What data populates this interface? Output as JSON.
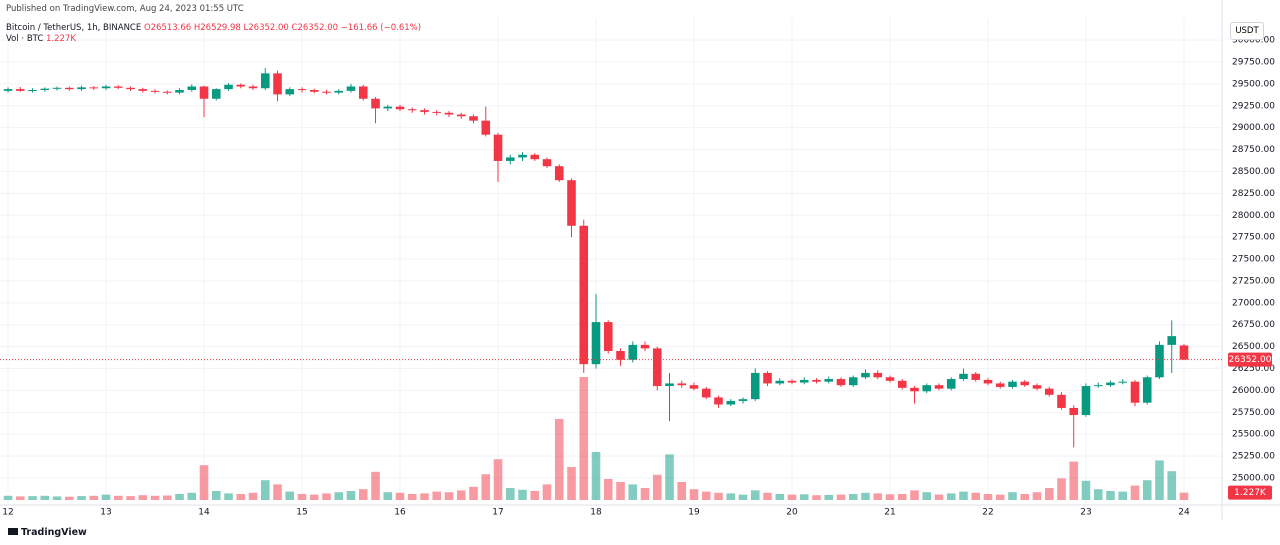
{
  "chart_data": {
    "type": "candlestick",
    "published": "Published on TradingView.com, Aug 24, 2023 01:55 UTC",
    "legend": {
      "symbol": "Bitcoin / TetherUS, 1h, BINANCE",
      "ohlc": "O26513.66 H26529.98 L26352.00 C26352.00 −161.66 (−0.61%)",
      "vol_title": "Vol · BTC",
      "vol_value": "1.227K"
    },
    "currency": "USDT",
    "footer": "TradingView",
    "up_color": "#089981",
    "down_color": "#f23645",
    "grid": true,
    "x": [
      12,
      12.125,
      12.25,
      12.375,
      12.5,
      12.625,
      12.75,
      12.875,
      13,
      13.125,
      13.25,
      13.375,
      13.5,
      13.625,
      13.75,
      13.875,
      14,
      14.125,
      14.25,
      14.375,
      14.5,
      14.625,
      14.75,
      14.875,
      15,
      15.125,
      15.25,
      15.375,
      15.5,
      15.625,
      15.75,
      15.875,
      16,
      16.125,
      16.25,
      16.375,
      16.5,
      16.625,
      16.75,
      16.875,
      17,
      17.125,
      17.25,
      17.375,
      17.5,
      17.625,
      17.75,
      17.875,
      18,
      18.125,
      18.25,
      18.375,
      18.5,
      18.625,
      18.75,
      18.875,
      19,
      19.125,
      19.25,
      19.375,
      19.5,
      19.625,
      19.75,
      19.875,
      20,
      20.125,
      20.25,
      20.375,
      20.5,
      20.625,
      20.75,
      20.875,
      21,
      21.125,
      21.25,
      21.375,
      21.5,
      21.625,
      21.75,
      21.875,
      22,
      22.125,
      22.25,
      22.375,
      22.5,
      22.625,
      22.75,
      22.875,
      23,
      23.125,
      23.25,
      23.375,
      23.5,
      23.625,
      23.75,
      23.875,
      24
    ],
    "open": [
      29420,
      29440,
      29420,
      29430,
      29445,
      29455,
      29440,
      29460,
      29450,
      29470,
      29455,
      29440,
      29420,
      29410,
      29400,
      29430,
      29470,
      29330,
      29440,
      29490,
      29470,
      29450,
      29620,
      29380,
      29440,
      29430,
      29410,
      29400,
      29420,
      29470,
      29330,
      29220,
      29240,
      29210,
      29200,
      29180,
      29170,
      29150,
      29130,
      29080,
      28920,
      28620,
      28660,
      28690,
      28640,
      28560,
      28400,
      27880,
      26300,
      26780,
      26450,
      26350,
      26520,
      26480,
      26050,
      26080,
      26060,
      26020,
      25920,
      25840,
      25880,
      25900,
      26200,
      26080,
      26110,
      26090,
      26120,
      26100,
      26130,
      26060,
      26150,
      26200,
      26150,
      26110,
      26030,
      25990,
      26060,
      26020,
      26130,
      26190,
      26120,
      26080,
      26040,
      26100,
      26060,
      26020,
      25950,
      25800,
      25720,
      26050,
      26060,
      26090,
      26100,
      25860,
      26150,
      26520,
      26513.66
    ],
    "high": [
      29460,
      29465,
      29450,
      29460,
      29470,
      29470,
      29480,
      29475,
      29490,
      29485,
      29470,
      29455,
      29440,
      29425,
      29450,
      29495,
      29480,
      29450,
      29510,
      29505,
      29490,
      29680,
      29650,
      29460,
      29460,
      29445,
      29430,
      29440,
      29500,
      29490,
      29350,
      29260,
      29260,
      29230,
      29220,
      29200,
      29190,
      29170,
      29150,
      29240,
      28940,
      28690,
      28720,
      28710,
      28660,
      28580,
      28420,
      27950,
      27100,
      26800,
      26480,
      26560,
      26560,
      26500,
      26200,
      26110,
      26090,
      26040,
      25940,
      25900,
      25920,
      26250,
      26220,
      26140,
      26130,
      26150,
      26140,
      26160,
      26150,
      26170,
      26240,
      26230,
      26170,
      26130,
      26050,
      26080,
      26080,
      26150,
      26250,
      26210,
      26140,
      26100,
      26120,
      26120,
      26080,
      26040,
      25980,
      25830,
      26080,
      26090,
      26110,
      26130,
      26120,
      26170,
      26560,
      26800,
      26529.98
    ],
    "low": [
      29400,
      29410,
      29400,
      29410,
      29425,
      29420,
      29420,
      29430,
      29430,
      29440,
      29420,
      29400,
      29390,
      29380,
      29380,
      29410,
      29120,
      29310,
      29420,
      29450,
      29430,
      29430,
      29300,
      29360,
      29400,
      29390,
      29380,
      29380,
      29400,
      29310,
      29050,
      29190,
      29190,
      29170,
      29150,
      29140,
      29120,
      29100,
      29050,
      28900,
      28380,
      28580,
      28620,
      28620,
      28540,
      28380,
      27750,
      26200,
      26250,
      26420,
      26280,
      26320,
      26450,
      26000,
      25650,
      26030,
      26000,
      25900,
      25800,
      25820,
      25850,
      25880,
      26050,
      26060,
      26070,
      26070,
      26080,
      26080,
      26040,
      26040,
      26130,
      26130,
      26090,
      26010,
      25850,
      25970,
      26000,
      26000,
      26110,
      26100,
      26060,
      26020,
      26020,
      26040,
      26000,
      25930,
      25780,
      25350,
      25700,
      26030,
      26040,
      26070,
      25820,
      25840,
      26130,
      26200,
      26352
    ],
    "close": [
      29440,
      29420,
      29430,
      29445,
      29455,
      29440,
      29460,
      29450,
      29470,
      29455,
      29440,
      29420,
      29410,
      29400,
      29430,
      29470,
      29330,
      29440,
      29490,
      29470,
      29450,
      29620,
      29380,
      29440,
      29430,
      29410,
      29400,
      29420,
      29470,
      29330,
      29220,
      29240,
      29210,
      29200,
      29180,
      29170,
      29150,
      29130,
      29080,
      28920,
      28620,
      28660,
      28690,
      28640,
      28560,
      28400,
      27880,
      26300,
      26780,
      26450,
      26350,
      26520,
      26480,
      26050,
      26080,
      26060,
      26020,
      25920,
      25840,
      25880,
      25900,
      26200,
      26080,
      26110,
      26090,
      26120,
      26100,
      26130,
      26060,
      26150,
      26200,
      26150,
      26110,
      26030,
      25990,
      26060,
      26020,
      26130,
      26190,
      26120,
      26080,
      26040,
      26100,
      26060,
      26020,
      25950,
      25800,
      25720,
      26050,
      26060,
      26090,
      26100,
      25860,
      26150,
      26520,
      26620,
      26352
    ],
    "volume": [
      700,
      600,
      650,
      700,
      600,
      550,
      650,
      700,
      900,
      700,
      650,
      800,
      700,
      750,
      1000,
      1200,
      5800,
      1500,
      1100,
      1000,
      1200,
      3300,
      2600,
      1400,
      1000,
      900,
      1100,
      1300,
      1500,
      1800,
      4700,
      1300,
      1200,
      1000,
      1100,
      1400,
      1300,
      1600,
      2200,
      4300,
      6800,
      2000,
      1700,
      1500,
      2600,
      13500,
      5500,
      20500,
      8000,
      3500,
      3000,
      2600,
      2000,
      4200,
      7600,
      3000,
      1800,
      1400,
      1200,
      1100,
      900,
      1600,
      1200,
      1000,
      900,
      950,
      800,
      850,
      900,
      1000,
      1200,
      1100,
      950,
      1000,
      1600,
      1300,
      900,
      1100,
      1400,
      1200,
      1000,
      900,
      1300,
      1000,
      1300,
      2000,
      3600,
      6400,
      3200,
      1800,
      1500,
      1400,
      2400,
      3300,
      6600,
      4800,
      1227
    ],
    "xlim": [
      11.918,
      24.388
    ],
    "xticks": [
      12,
      13,
      14,
      15,
      16,
      17,
      18,
      19,
      20,
      21,
      22,
      23,
      24
    ],
    "ylim": [
      24692,
      30252
    ],
    "yticks": [
      {
        "value": 25000,
        "label": "25000.00"
      },
      {
        "value": 25250,
        "label": "25250.00"
      },
      {
        "value": 25500,
        "label": "25500.00"
      },
      {
        "value": 25750,
        "label": "25750.00"
      },
      {
        "value": 26000,
        "label": "26000.00"
      },
      {
        "value": 26250,
        "label": "26250.00"
      },
      {
        "value": 26500,
        "label": "26500.00"
      },
      {
        "value": 26750,
        "label": "26750.00"
      },
      {
        "value": 27000,
        "label": "27000.00"
      },
      {
        "value": 27250,
        "label": "27250.00"
      },
      {
        "value": 27500,
        "label": "27500.00"
      },
      {
        "value": 27750,
        "label": "27750.00"
      },
      {
        "value": 28000,
        "label": "28000.00"
      },
      {
        "value": 28250,
        "label": "28250.00"
      },
      {
        "value": 28500,
        "label": "28500.00"
      },
      {
        "value": 28750,
        "label": "28750.00"
      },
      {
        "value": 29000,
        "label": "29000.00"
      },
      {
        "value": 29250,
        "label": "29250.00"
      },
      {
        "value": 29500,
        "label": "29500.00"
      },
      {
        "value": 29750,
        "label": "29750.00"
      },
      {
        "value": 30000,
        "label": "30000.00"
      }
    ],
    "vlim": [
      0,
      25000
    ],
    "last_price": {
      "value": 26352,
      "label": "26352.00"
    },
    "last_volume": {
      "value": 1227,
      "label": "1.227K"
    }
  }
}
